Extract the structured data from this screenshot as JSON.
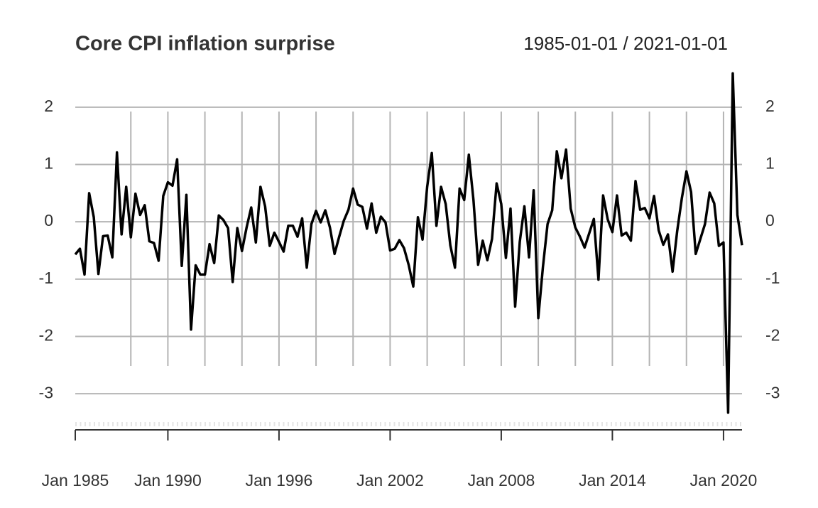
{
  "chart_data": {
    "type": "line",
    "title": "Core CPI inflation surprise",
    "subtitle": "1985-01-01 / 2021-01-01",
    "x": [
      1985,
      1985.25,
      1985.5,
      1985.75,
      1986,
      1986.25,
      1986.5,
      1986.75,
      1987,
      1987.25,
      1987.5,
      1987.75,
      1988,
      1988.25,
      1988.5,
      1988.75,
      1989,
      1989.25,
      1989.5,
      1989.75,
      1990,
      1990.25,
      1990.5,
      1990.75,
      1991,
      1991.25,
      1991.5,
      1991.75,
      1992,
      1992.25,
      1992.5,
      1992.75,
      1993,
      1993.25,
      1993.5,
      1993.75,
      1994,
      1994.25,
      1994.5,
      1994.75,
      1995,
      1995.25,
      1995.5,
      1995.75,
      1996,
      1996.25,
      1996.5,
      1996.75,
      1997,
      1997.25,
      1997.5,
      1997.75,
      1998,
      1998.25,
      1998.5,
      1998.75,
      1999,
      1999.25,
      1999.5,
      1999.75,
      2000,
      2000.25,
      2000.5,
      2000.75,
      2001,
      2001.25,
      2001.5,
      2001.75,
      2002,
      2002.25,
      2002.5,
      2002.75,
      2003,
      2003.25,
      2003.5,
      2003.75,
      2004,
      2004.25,
      2004.5,
      2004.75,
      2005,
      2005.25,
      2005.5,
      2005.75,
      2006,
      2006.25,
      2006.5,
      2006.75,
      2007,
      2007.25,
      2007.5,
      2007.75,
      2008,
      2008.25,
      2008.5,
      2008.75,
      2009,
      2009.25,
      2009.5,
      2009.75,
      2010,
      2010.25,
      2010.5,
      2010.75,
      2011,
      2011.25,
      2011.5,
      2011.75,
      2012,
      2012.25,
      2012.5,
      2012.75,
      2013,
      2013.25,
      2013.5,
      2013.75,
      2014,
      2014.25,
      2014.5,
      2014.75,
      2015,
      2015.25,
      2015.5,
      2015.75,
      2016,
      2016.25,
      2016.5,
      2016.75,
      2017,
      2017.25,
      2017.5,
      2017.75,
      2018,
      2018.25,
      2018.5,
      2018.75,
      2019,
      2019.25,
      2019.5,
      2019.75,
      2020,
      2020.25,
      2020.5,
      2020.75,
      2021
    ],
    "values": [
      -0.57,
      -0.47,
      -0.92,
      0.5,
      0.08,
      -0.91,
      -0.25,
      -0.24,
      -0.62,
      1.21,
      -0.22,
      0.61,
      -0.27,
      0.49,
      0.12,
      0.29,
      -0.34,
      -0.37,
      -0.68,
      0.45,
      0.69,
      0.63,
      1.09,
      -0.77,
      0.47,
      -1.88,
      -0.76,
      -0.92,
      -0.92,
      -0.39,
      -0.72,
      0.11,
      0.03,
      -0.11,
      -1.05,
      -0.11,
      -0.51,
      -0.1,
      0.25,
      -0.36,
      0.61,
      0.27,
      -0.42,
      -0.19,
      -0.35,
      -0.52,
      -0.07,
      -0.07,
      -0.26,
      0.06,
      -0.8,
      -0.04,
      0.19,
      -0.01,
      0.2,
      -0.1,
      -0.56,
      -0.26,
      0.02,
      0.21,
      0.58,
      0.3,
      0.26,
      -0.12,
      0.32,
      -0.19,
      0.09,
      -0.01,
      -0.5,
      -0.47,
      -0.32,
      -0.46,
      -0.75,
      -1.13,
      0.08,
      -0.31,
      0.61,
      1.2,
      -0.07,
      0.61,
      0.31,
      -0.41,
      -0.8,
      0.58,
      0.38,
      1.17,
      0.38,
      -0.75,
      -0.33,
      -0.67,
      -0.3,
      0.67,
      0.31,
      -0.63,
      0.23,
      -1.48,
      -0.35,
      0.27,
      -0.62,
      0.55,
      -1.68,
      -0.79,
      -0.04,
      0.2,
      1.23,
      0.76,
      1.26,
      0.23,
      -0.1,
      -0.26,
      -0.45,
      -0.2,
      0.05,
      -1.01,
      0.46,
      0.04,
      -0.18,
      0.46,
      -0.24,
      -0.19,
      -0.33,
      0.71,
      0.21,
      0.24,
      0.06,
      0.45,
      -0.15,
      -0.4,
      -0.22,
      -0.87,
      -0.16,
      0.41,
      0.88,
      0.52,
      -0.56,
      -0.3,
      -0.04,
      0.51,
      0.32,
      -0.42,
      -0.36,
      -3.33,
      2.59,
      0.12,
      -0.41
    ],
    "color": "#000000",
    "xlim": [
      1985,
      2021
    ],
    "xticks": [
      {
        "value": 1985,
        "label": "Jan 1985"
      },
      {
        "value": 1990,
        "label": "Jan 1990"
      },
      {
        "value": 1996,
        "label": "Jan 1996"
      },
      {
        "value": 2002,
        "label": "Jan 2002"
      },
      {
        "value": 2008,
        "label": "Jan 2008"
      },
      {
        "value": 2014,
        "label": "Jan 2014"
      },
      {
        "value": 2020,
        "label": "Jan 2020"
      }
    ],
    "x_gridlines": [
      1988,
      1990,
      1992,
      1994,
      1996,
      1998,
      2000,
      2002,
      2004,
      2006,
      2008,
      2010,
      2012,
      2014,
      2016,
      2018,
      2020
    ],
    "ylim": [
      -3.63,
      2.63
    ],
    "yticks": [
      -3,
      -2,
      -1,
      0,
      1,
      2
    ],
    "grid": true
  }
}
